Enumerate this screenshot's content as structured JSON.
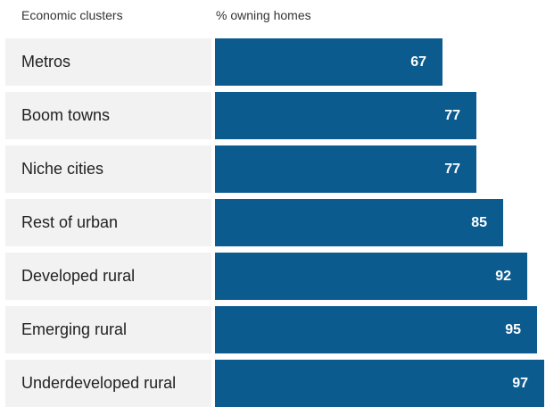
{
  "header": {
    "category_label": "Economic clusters",
    "value_label": "% owning homes"
  },
  "colors": {
    "bar": "#0b5b8f",
    "label_background": "#f2f2f2",
    "value_text": "#ffffff"
  },
  "chart_data": {
    "type": "bar",
    "orientation": "horizontal",
    "categories": [
      "Metros",
      "Boom towns",
      "Niche cities",
      "Rest of urban",
      "Developed rural",
      "Emerging rural",
      "Underdeveloped rural"
    ],
    "values": [
      67,
      77,
      77,
      85,
      92,
      95,
      97
    ],
    "xlabel": "% owning homes",
    "ylabel": "Economic clusters",
    "xlim": [
      0,
      100
    ],
    "grid": false,
    "legend": "none"
  }
}
